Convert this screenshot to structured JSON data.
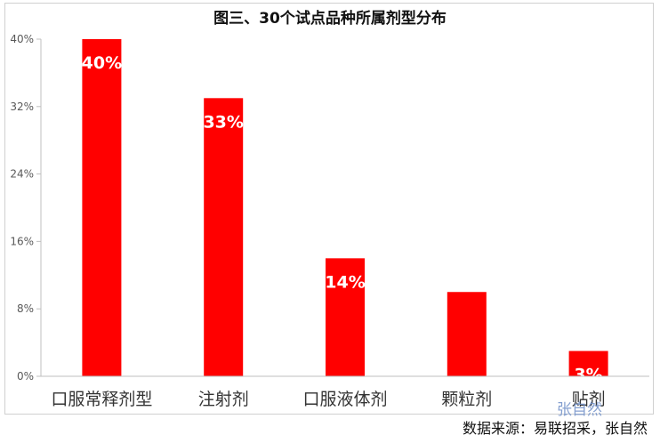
{
  "chart_data": {
    "type": "bar",
    "title": "图三、30个试点品种所属剂型分布",
    "categories": [
      "口服常释剂型",
      "注射剂",
      "口服液体剂",
      "颗粒剂",
      "贴剂"
    ],
    "values": [
      40,
      33,
      14,
      10,
      3
    ],
    "data_labels": [
      "40%",
      "33%",
      "14%",
      "",
      "3%"
    ],
    "ylim": [
      0,
      40
    ],
    "yticks": [
      0,
      8,
      16,
      24,
      32,
      40
    ],
    "ytick_labels": [
      "0%",
      "8%",
      "16%",
      "24%",
      "32%",
      "40%"
    ],
    "xlabel": "",
    "ylabel": "",
    "grid": false,
    "bar_color": "#ff0000"
  },
  "source": "数据来源：易联招采，张自然",
  "watermark": "张自然"
}
